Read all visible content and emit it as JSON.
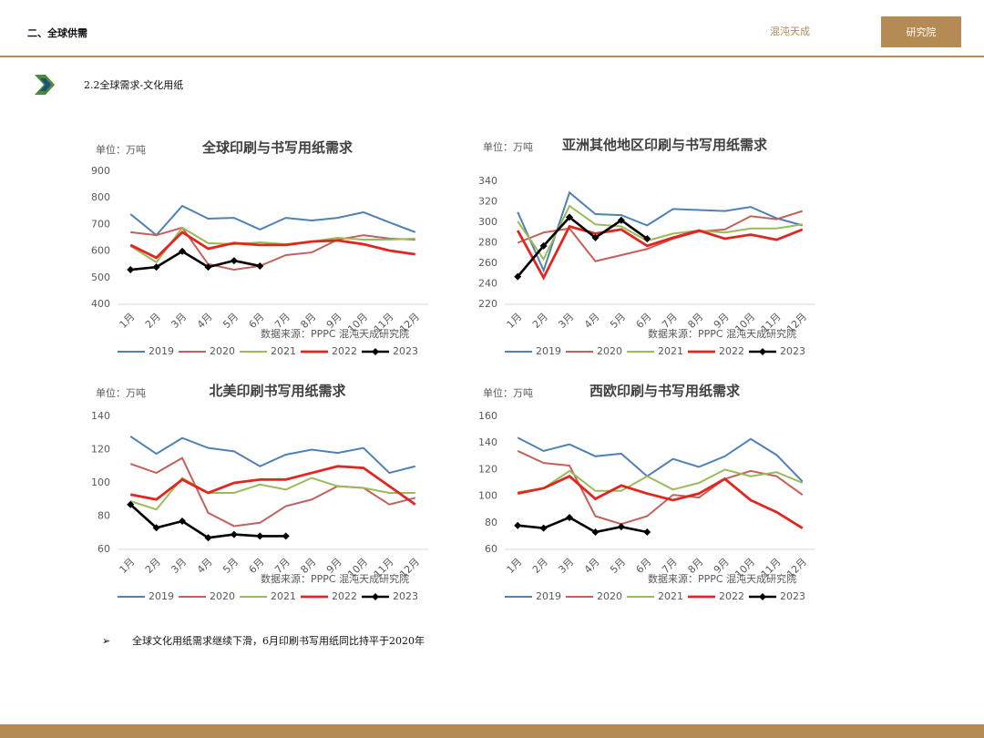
{
  "header": {
    "section": "二、全球供需",
    "logo_main": "混沌天成",
    "logo_box": "研究院",
    "subtitle": "2.2全球需求-文化用纸"
  },
  "note": "全球文化用纸需求继续下滑，6月印刷书写用纸同比持平于2020年",
  "chart_data": [
    {
      "type": "line",
      "title": "全球印刷与书写用纸需求",
      "unit": "单位：万吨",
      "source": "数据来源：PPPC 混沌天成研究院",
      "categories": [
        "1月",
        "2月",
        "3月",
        "4月",
        "5月",
        "6月",
        "7月",
        "8月",
        "9月",
        "10月",
        "11月",
        "12月"
      ],
      "ylim": [
        400,
        900
      ],
      "yticks": [
        400,
        500,
        600,
        700,
        800,
        900
      ],
      "grid": false,
      "legend": "bottom",
      "series": [
        {
          "name": "2019",
          "color": "#4f81b5",
          "values": [
            739,
            660,
            770,
            722,
            725,
            681,
            725,
            715,
            725,
            746,
            708,
            671
          ]
        },
        {
          "name": "2020",
          "color": "#c4605c",
          "values": [
            671,
            660,
            688,
            551,
            530,
            544,
            585,
            595,
            643,
            660,
            647,
            643
          ]
        },
        {
          "name": "2021",
          "color": "#9bbb59",
          "values": [
            619,
            558,
            688,
            630,
            626,
            633,
            626,
            636,
            650,
            643,
            643,
            647
          ]
        },
        {
          "name": "2022",
          "color": "#e2261f",
          "values": [
            623,
            575,
            671,
            609,
            630,
            623,
            623,
            636,
            640,
            626,
            602,
            588
          ]
        },
        {
          "name": "2023",
          "color": "#000000",
          "values": [
            530,
            540,
            599,
            540,
            564,
            544,
            null,
            null,
            null,
            null,
            null,
            null
          ]
        }
      ]
    },
    {
      "type": "line",
      "title": "亚洲其他地区印刷与书写用纸需求",
      "unit": "单位：万吨",
      "source": "数据来源：PPPC 混沌天成研究院",
      "categories": [
        "1月",
        "2月",
        "3月",
        "4月",
        "5月",
        "6月",
        "7月",
        "8月",
        "9月",
        "10月",
        "11月",
        "12月"
      ],
      "ylim": [
        220,
        340
      ],
      "yticks": [
        220,
        240,
        260,
        280,
        300,
        320,
        340
      ],
      "grid": false,
      "legend": "bottom",
      "series": [
        {
          "name": "2019",
          "color": "#4f81b5",
          "values": [
            310,
            253,
            329,
            308,
            307,
            297,
            313,
            312,
            311,
            315,
            304,
            297
          ]
        },
        {
          "name": "2020",
          "color": "#c4605c",
          "values": [
            280,
            290,
            294,
            262,
            268,
            274,
            284,
            291,
            293,
            306,
            303,
            311
          ]
        },
        {
          "name": "2021",
          "color": "#9bbb59",
          "values": [
            301,
            264,
            316,
            298,
            296,
            282,
            289,
            292,
            290,
            294,
            294,
            298
          ]
        },
        {
          "name": "2022",
          "color": "#e2261f",
          "values": [
            292,
            246,
            296,
            289,
            293,
            277,
            285,
            292,
            284,
            288,
            283,
            293
          ]
        },
        {
          "name": "2023",
          "color": "#000000",
          "values": [
            247,
            277,
            305,
            285,
            302,
            284,
            null,
            null,
            null,
            null,
            null,
            null
          ]
        }
      ]
    },
    {
      "type": "line",
      "title": "北美印刷书写用纸需求",
      "unit": "单位：万吨",
      "source": "数据来源：PPPC 混沌天成研究院",
      "categories": [
        "1月",
        "2月",
        "3月",
        "4月",
        "5月",
        "6月",
        "7月",
        "8月",
        "9月",
        "10月",
        "11月",
        "12月"
      ],
      "ylim": [
        60,
        140
      ],
      "yticks": [
        60,
        80,
        100,
        120,
        140
      ],
      "grid": false,
      "legend": "bottom",
      "series": [
        {
          "name": "2019",
          "color": "#4f81b5",
          "values": [
            128,
            117.5,
            127,
            121,
            119,
            110,
            117,
            120,
            118,
            121,
            106,
            110
          ]
        },
        {
          "name": "2020",
          "color": "#c4605c",
          "values": [
            111.5,
            106,
            115,
            82,
            74,
            76,
            86,
            90,
            98,
            97,
            87,
            91
          ]
        },
        {
          "name": "2021",
          "color": "#9bbb59",
          "values": [
            89,
            84,
            103,
            94,
            94,
            99,
            96,
            103,
            98,
            97,
            94,
            94
          ]
        },
        {
          "name": "2022",
          "color": "#e2261f",
          "values": [
            93,
            90,
            102,
            94,
            100,
            102,
            102,
            106,
            110,
            109,
            98,
            87
          ]
        },
        {
          "name": "2023",
          "color": "#000000",
          "values": [
            87,
            73,
            77,
            67,
            69,
            68,
            68,
            null,
            null,
            null,
            null,
            null
          ]
        }
      ]
    },
    {
      "type": "line",
      "title": "西欧印刷与书写用纸需求",
      "unit": "单位：万吨",
      "source": "数据来源：PPPC 混沌天成研究院",
      "categories": [
        "1月",
        "2月",
        "3月",
        "4月",
        "5月",
        "6月",
        "7月",
        "8月",
        "9月",
        "10月",
        "11月",
        "12月"
      ],
      "ylim": [
        60,
        160
      ],
      "yticks": [
        60,
        80,
        100,
        120,
        140,
        160
      ],
      "grid": false,
      "legend": "bottom",
      "series": [
        {
          "name": "2019",
          "color": "#4f81b5",
          "values": [
            144,
            134,
            139,
            130,
            132,
            115,
            128,
            122,
            130,
            143,
            131,
            111
          ]
        },
        {
          "name": "2020",
          "color": "#c4605c",
          "values": [
            134,
            125,
            123,
            85,
            79,
            85,
            101,
            99,
            113,
            119,
            115,
            101
          ]
        },
        {
          "name": "2021",
          "color": "#9bbb59",
          "values": [
            103,
            106,
            119,
            104,
            104,
            115,
            105,
            110,
            120,
            115,
            118,
            110
          ]
        },
        {
          "name": "2022",
          "color": "#e2261f",
          "values": [
            102,
            106,
            115,
            98,
            108,
            102,
            97,
            102,
            113,
            97,
            88,
            76
          ]
        },
        {
          "name": "2023",
          "color": "#000000",
          "values": [
            78,
            76,
            84,
            73,
            77,
            73,
            null,
            null,
            null,
            null,
            null,
            null
          ]
        }
      ]
    }
  ]
}
